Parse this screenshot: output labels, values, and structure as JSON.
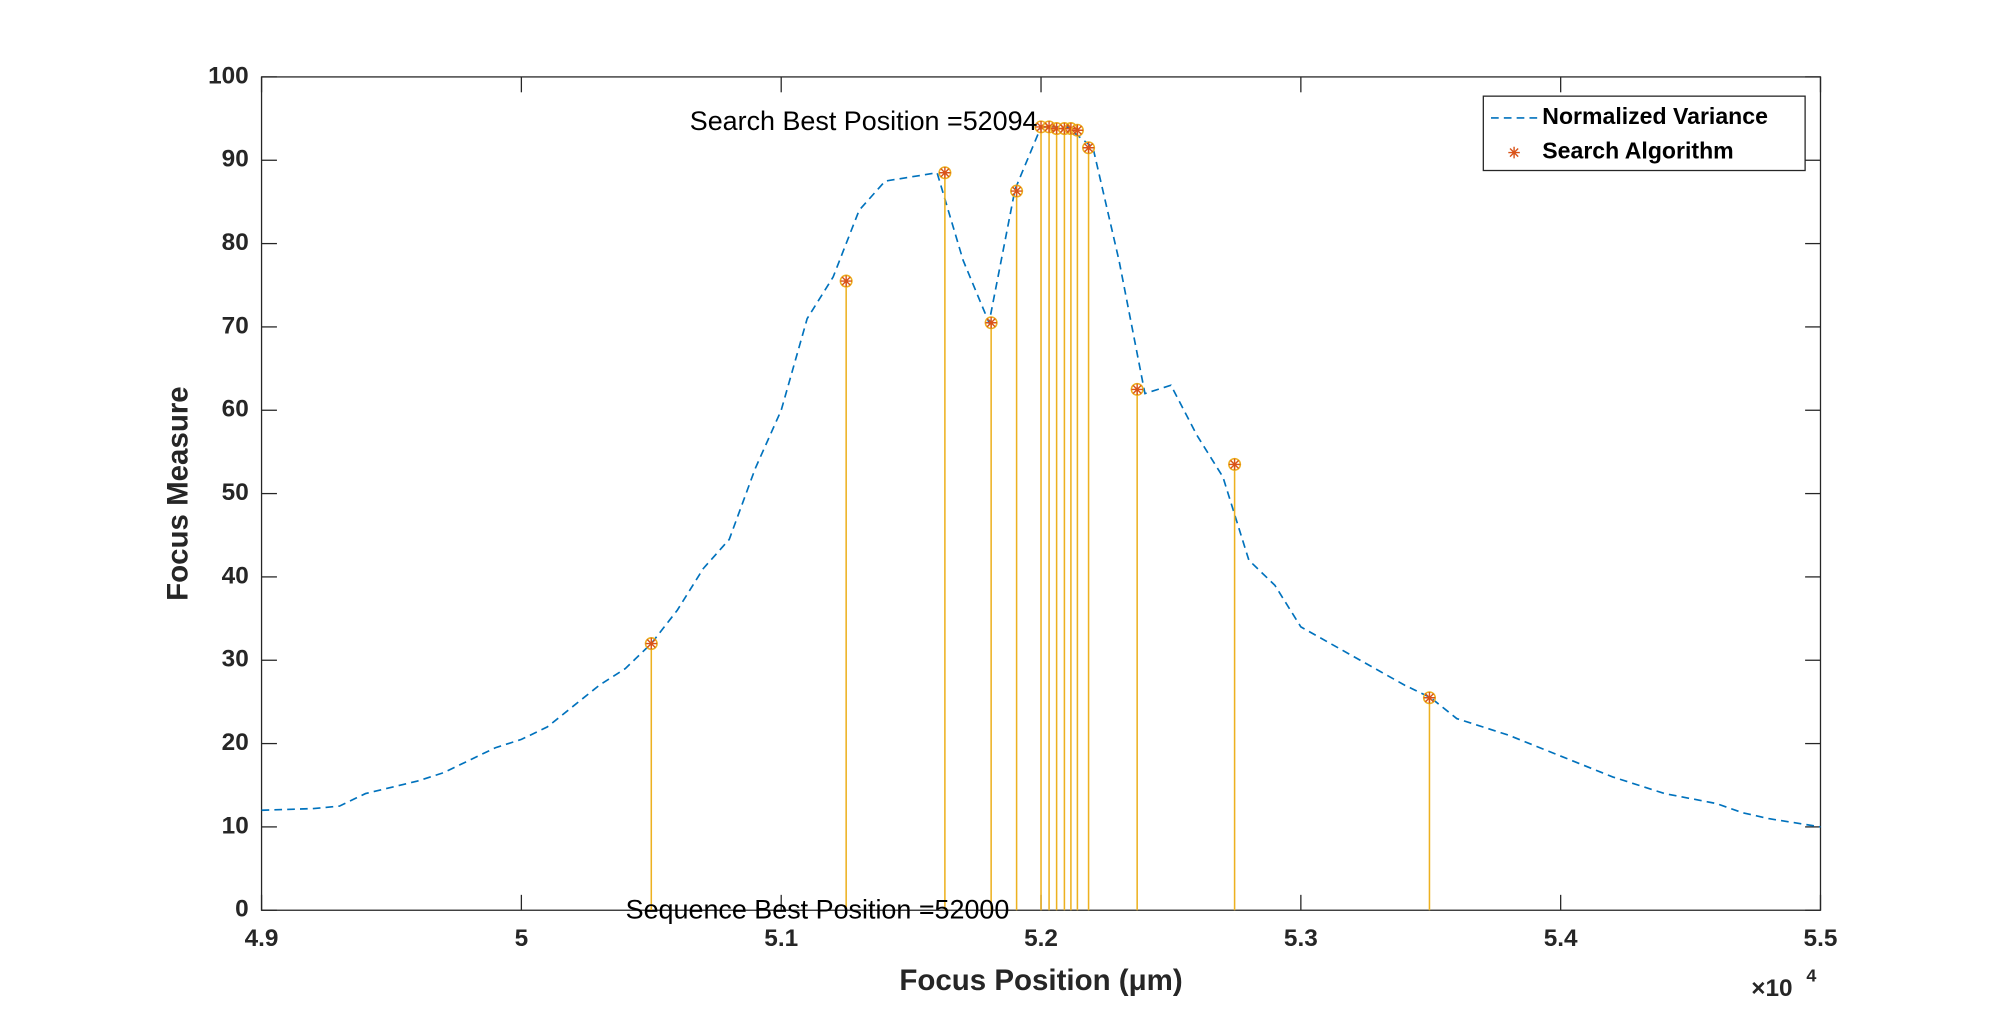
{
  "chart_data": {
    "type": "line",
    "xlabel": "Focus Position (μm)",
    "ylabel": "Focus Measure",
    "x_multiplier": "×10",
    "x_multiplier_exponent": "4",
    "xlim": [
      49000,
      55000
    ],
    "ylim": [
      0,
      100
    ],
    "xticks": [
      {
        "value": 49000,
        "label": "4.9"
      },
      {
        "value": 50000,
        "label": "5"
      },
      {
        "value": 51000,
        "label": "5.1"
      },
      {
        "value": 52000,
        "label": "5.2"
      },
      {
        "value": 53000,
        "label": "5.3"
      },
      {
        "value": 54000,
        "label": "5.4"
      },
      {
        "value": 55000,
        "label": "5.5"
      }
    ],
    "yticks": [
      0,
      10,
      20,
      30,
      40,
      50,
      60,
      70,
      80,
      90,
      100
    ],
    "grid": false,
    "legend": "northeast",
    "annotations": [
      "Search Best Position =52094",
      "Sequence Best Position =52000"
    ],
    "series": [
      {
        "name": "Normalized Variance",
        "color": "#0072bd",
        "style": "dashed",
        "x": [
          49000,
          49200,
          49300,
          49400,
          49600,
          49700,
          49900,
          50000,
          50100,
          50200,
          50300,
          50400,
          50500,
          50600,
          50700,
          50800,
          50900,
          51000,
          51100,
          51200,
          51300,
          51400,
          51500,
          51600,
          51700,
          51800,
          51900,
          52000,
          52100,
          52200,
          52300,
          52400,
          52500,
          52600,
          52700,
          52800,
          52900,
          53000,
          53200,
          53400,
          53500,
          53600,
          53800,
          54000,
          54200,
          54400,
          54600,
          54700,
          54800,
          55000
        ],
        "values": [
          12,
          12.2,
          12.5,
          14,
          15.5,
          16.5,
          19.5,
          20.5,
          22,
          24.5,
          27,
          29,
          32,
          36,
          41,
          44.5,
          53,
          60,
          71,
          76,
          84,
          87.5,
          88,
          88.5,
          78,
          70.5,
          86.5,
          94,
          94,
          91.5,
          78,
          62,
          63,
          57,
          52,
          42,
          39,
          34,
          30.5,
          27,
          25.5,
          23,
          21,
          18.5,
          16,
          14,
          12.8,
          11.7,
          11,
          10
        ]
      },
      {
        "name": "Search Algorithm",
        "color": "#d95319",
        "stem_color": "#edb120",
        "style": "stem",
        "x": [
          50500,
          51250,
          51630,
          51808,
          51906,
          52000,
          52031,
          52060,
          52090,
          52115,
          52140,
          52183,
          52370,
          52745,
          53495
        ],
        "values": [
          32,
          75.5,
          88.5,
          70.5,
          86.3,
          94,
          94,
          93.8,
          93.8,
          93.8,
          93.6,
          91.5,
          62.5,
          53.5,
          25.5
        ]
      }
    ]
  }
}
